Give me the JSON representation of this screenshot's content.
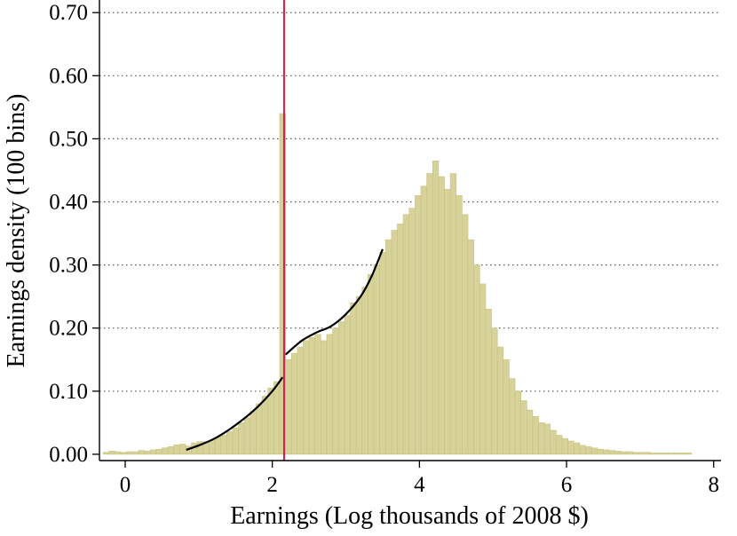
{
  "chart_data": {
    "type": "bar",
    "title": "",
    "xlabel": "Earnings (Log thousands of 2008 $)",
    "ylabel": "Earnings density (100 bins)",
    "xlim": [
      -0.35,
      8.1
    ],
    "ylim": [
      -0.01,
      0.72
    ],
    "xticks": [
      0,
      2,
      4,
      6,
      8
    ],
    "xtick_labels": [
      "0",
      "2",
      "4",
      "6",
      "8"
    ],
    "yticks": [
      0.0,
      0.1,
      0.2,
      0.3,
      0.4,
      0.5,
      0.6,
      0.7
    ],
    "ytick_labels": [
      "0.00",
      "0.10",
      "0.20",
      "0.30",
      "0.40",
      "0.50",
      "0.60",
      "0.70"
    ],
    "grid": "horizontal dotted",
    "bin_width": 0.08,
    "bin_left_edges": [
      -0.3,
      -0.22,
      -0.14,
      -0.06,
      0.02,
      0.1,
      0.18,
      0.26,
      0.34,
      0.42,
      0.5,
      0.58,
      0.66,
      0.74,
      0.82,
      0.9,
      0.98,
      1.06,
      1.14,
      1.22,
      1.3,
      1.38,
      1.46,
      1.54,
      1.62,
      1.7,
      1.78,
      1.86,
      1.94,
      2.02,
      2.1,
      2.18,
      2.26,
      2.34,
      2.42,
      2.5,
      2.58,
      2.66,
      2.74,
      2.82,
      2.9,
      2.98,
      3.06,
      3.14,
      3.22,
      3.3,
      3.38,
      3.46,
      3.54,
      3.62,
      3.7,
      3.78,
      3.86,
      3.94,
      4.02,
      4.1,
      4.18,
      4.26,
      4.34,
      4.42,
      4.5,
      4.58,
      4.66,
      4.74,
      4.82,
      4.9,
      4.98,
      5.06,
      5.14,
      5.22,
      5.3,
      5.38,
      5.46,
      5.54,
      5.62,
      5.7,
      5.78,
      5.86,
      5.94,
      6.02,
      6.1,
      6.18,
      6.26,
      6.34,
      6.42,
      6.5,
      6.58,
      6.66,
      6.74,
      6.82,
      6.9,
      6.98,
      7.06,
      7.14,
      7.22,
      7.3,
      7.38,
      7.46,
      7.54,
      7.62
    ],
    "values": [
      0.003,
      0.005,
      0.004,
      0.003,
      0.004,
      0.004,
      0.006,
      0.005,
      0.007,
      0.008,
      0.01,
      0.012,
      0.015,
      0.016,
      0.013,
      0.018,
      0.02,
      0.02,
      0.022,
      0.027,
      0.03,
      0.036,
      0.042,
      0.05,
      0.058,
      0.068,
      0.08,
      0.092,
      0.105,
      0.115,
      0.54,
      0.15,
      0.16,
      0.17,
      0.18,
      0.185,
      0.19,
      0.18,
      0.19,
      0.2,
      0.21,
      0.22,
      0.24,
      0.25,
      0.265,
      0.285,
      0.3,
      0.32,
      0.34,
      0.355,
      0.365,
      0.38,
      0.39,
      0.41,
      0.425,
      0.445,
      0.465,
      0.44,
      0.42,
      0.445,
      0.41,
      0.38,
      0.34,
      0.3,
      0.27,
      0.23,
      0.2,
      0.17,
      0.15,
      0.12,
      0.1,
      0.085,
      0.07,
      0.06,
      0.05,
      0.048,
      0.038,
      0.03,
      0.025,
      0.021,
      0.018,
      0.014,
      0.012,
      0.01,
      0.008,
      0.007,
      0.006,
      0.005,
      0.004,
      0.004,
      0.003,
      0.003,
      0.003,
      0.002,
      0.002,
      0.002,
      0.002,
      0.002,
      0.002,
      0.002
    ],
    "bar_color": "#d6d29a",
    "bar_edge_color": "#c8c37e",
    "vertical_line": {
      "x": 2.16,
      "color": "#d8174a"
    },
    "fit_curve_left": {
      "x": [
        0.83,
        1.0,
        1.2,
        1.4,
        1.6,
        1.8,
        2.0,
        2.14
      ],
      "y": [
        0.007,
        0.014,
        0.024,
        0.038,
        0.055,
        0.075,
        0.1,
        0.122
      ]
    },
    "fit_curve_right": {
      "x": [
        2.18,
        2.4,
        2.6,
        2.8,
        3.0,
        3.2,
        3.35,
        3.5
      ],
      "y": [
        0.158,
        0.18,
        0.193,
        0.203,
        0.222,
        0.25,
        0.282,
        0.325
      ]
    },
    "curve_color": "#000000"
  }
}
